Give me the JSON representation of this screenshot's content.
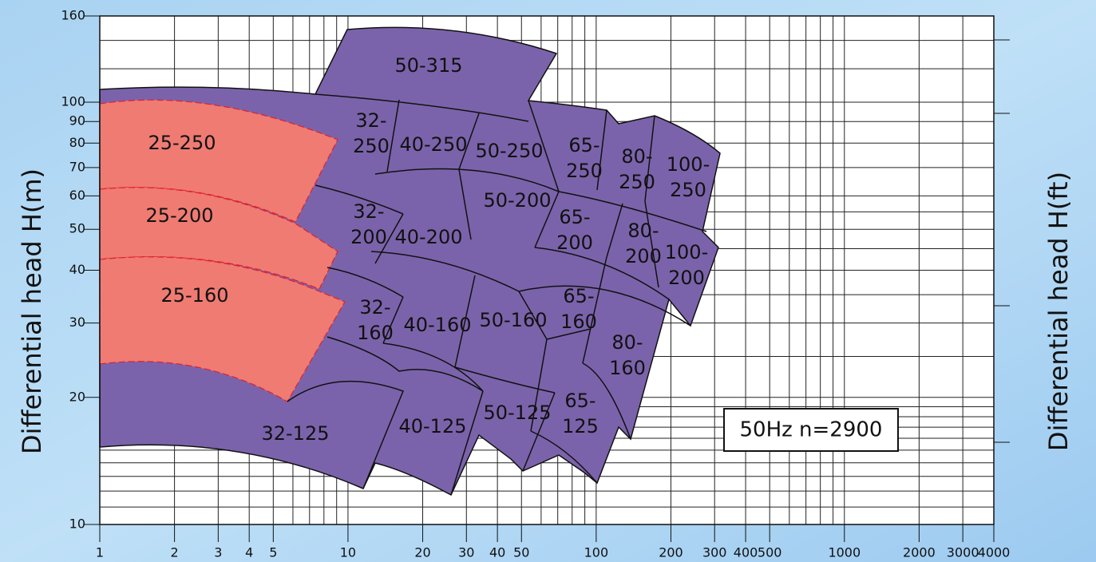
{
  "chart_data": {
    "type": "coverage",
    "y_axis_label": "Differential head H(m)",
    "y2_axis_label": "Differential head H(ft)",
    "annotation": "50Hz n=2900",
    "xscale": "log",
    "yscale": "log",
    "xlim": [
      1,
      4000
    ],
    "ylim": [
      10,
      160
    ],
    "xticks": [
      1,
      2,
      3,
      4,
      5,
      10,
      20,
      30,
      40,
      50,
      100,
      200,
      300,
      400,
      500,
      1000,
      2000,
      3000,
      4000
    ],
    "yticks": [
      10,
      20,
      30,
      40,
      50,
      60,
      70,
      80,
      90,
      100,
      160
    ],
    "xgrid": [
      1,
      2,
      3,
      4,
      5,
      6,
      7,
      8,
      9,
      10,
      20,
      30,
      40,
      50,
      60,
      70,
      80,
      90,
      100,
      200,
      300,
      400,
      500,
      600,
      700,
      800,
      900,
      1000,
      2000,
      3000,
      4000
    ],
    "ygrid": [
      10,
      11,
      12,
      13,
      14,
      15,
      16,
      17,
      18,
      19,
      20,
      25,
      30,
      35,
      40,
      45,
      50,
      55,
      60,
      70,
      80,
      90,
      100,
      120,
      140,
      160
    ],
    "grid": true,
    "regions": [
      {
        "label": [
          "50-315"
        ]
      },
      {
        "label": [
          "32-",
          "250"
        ]
      },
      {
        "label": [
          "40-250"
        ]
      },
      {
        "label": [
          "50-250"
        ]
      },
      {
        "label": [
          "65-",
          "250"
        ]
      },
      {
        "label": [
          "80-",
          "250"
        ]
      },
      {
        "label": [
          "100-",
          "250"
        ]
      },
      {
        "label": [
          "25-250"
        ]
      },
      {
        "label": [
          "25-200"
        ]
      },
      {
        "label": [
          "25-160"
        ]
      },
      {
        "label": [
          "32-",
          "200"
        ]
      },
      {
        "label": [
          "40-200"
        ]
      },
      {
        "label": [
          "50-200"
        ]
      },
      {
        "label": [
          "65-",
          "200"
        ]
      },
      {
        "label": [
          "80-",
          "200"
        ]
      },
      {
        "label": [
          "100-",
          "200"
        ]
      },
      {
        "label": [
          "32-",
          "160"
        ]
      },
      {
        "label": [
          "40-160"
        ]
      },
      {
        "label": [
          "50-160"
        ]
      },
      {
        "label": [
          "65-",
          "160"
        ]
      },
      {
        "label": [
          "80-",
          "160"
        ]
      },
      {
        "label": [
          "32-125"
        ]
      },
      {
        "label": [
          "40-125"
        ]
      },
      {
        "label": [
          "50-125"
        ]
      },
      {
        "label": [
          "65-",
          "125"
        ]
      }
    ]
  }
}
